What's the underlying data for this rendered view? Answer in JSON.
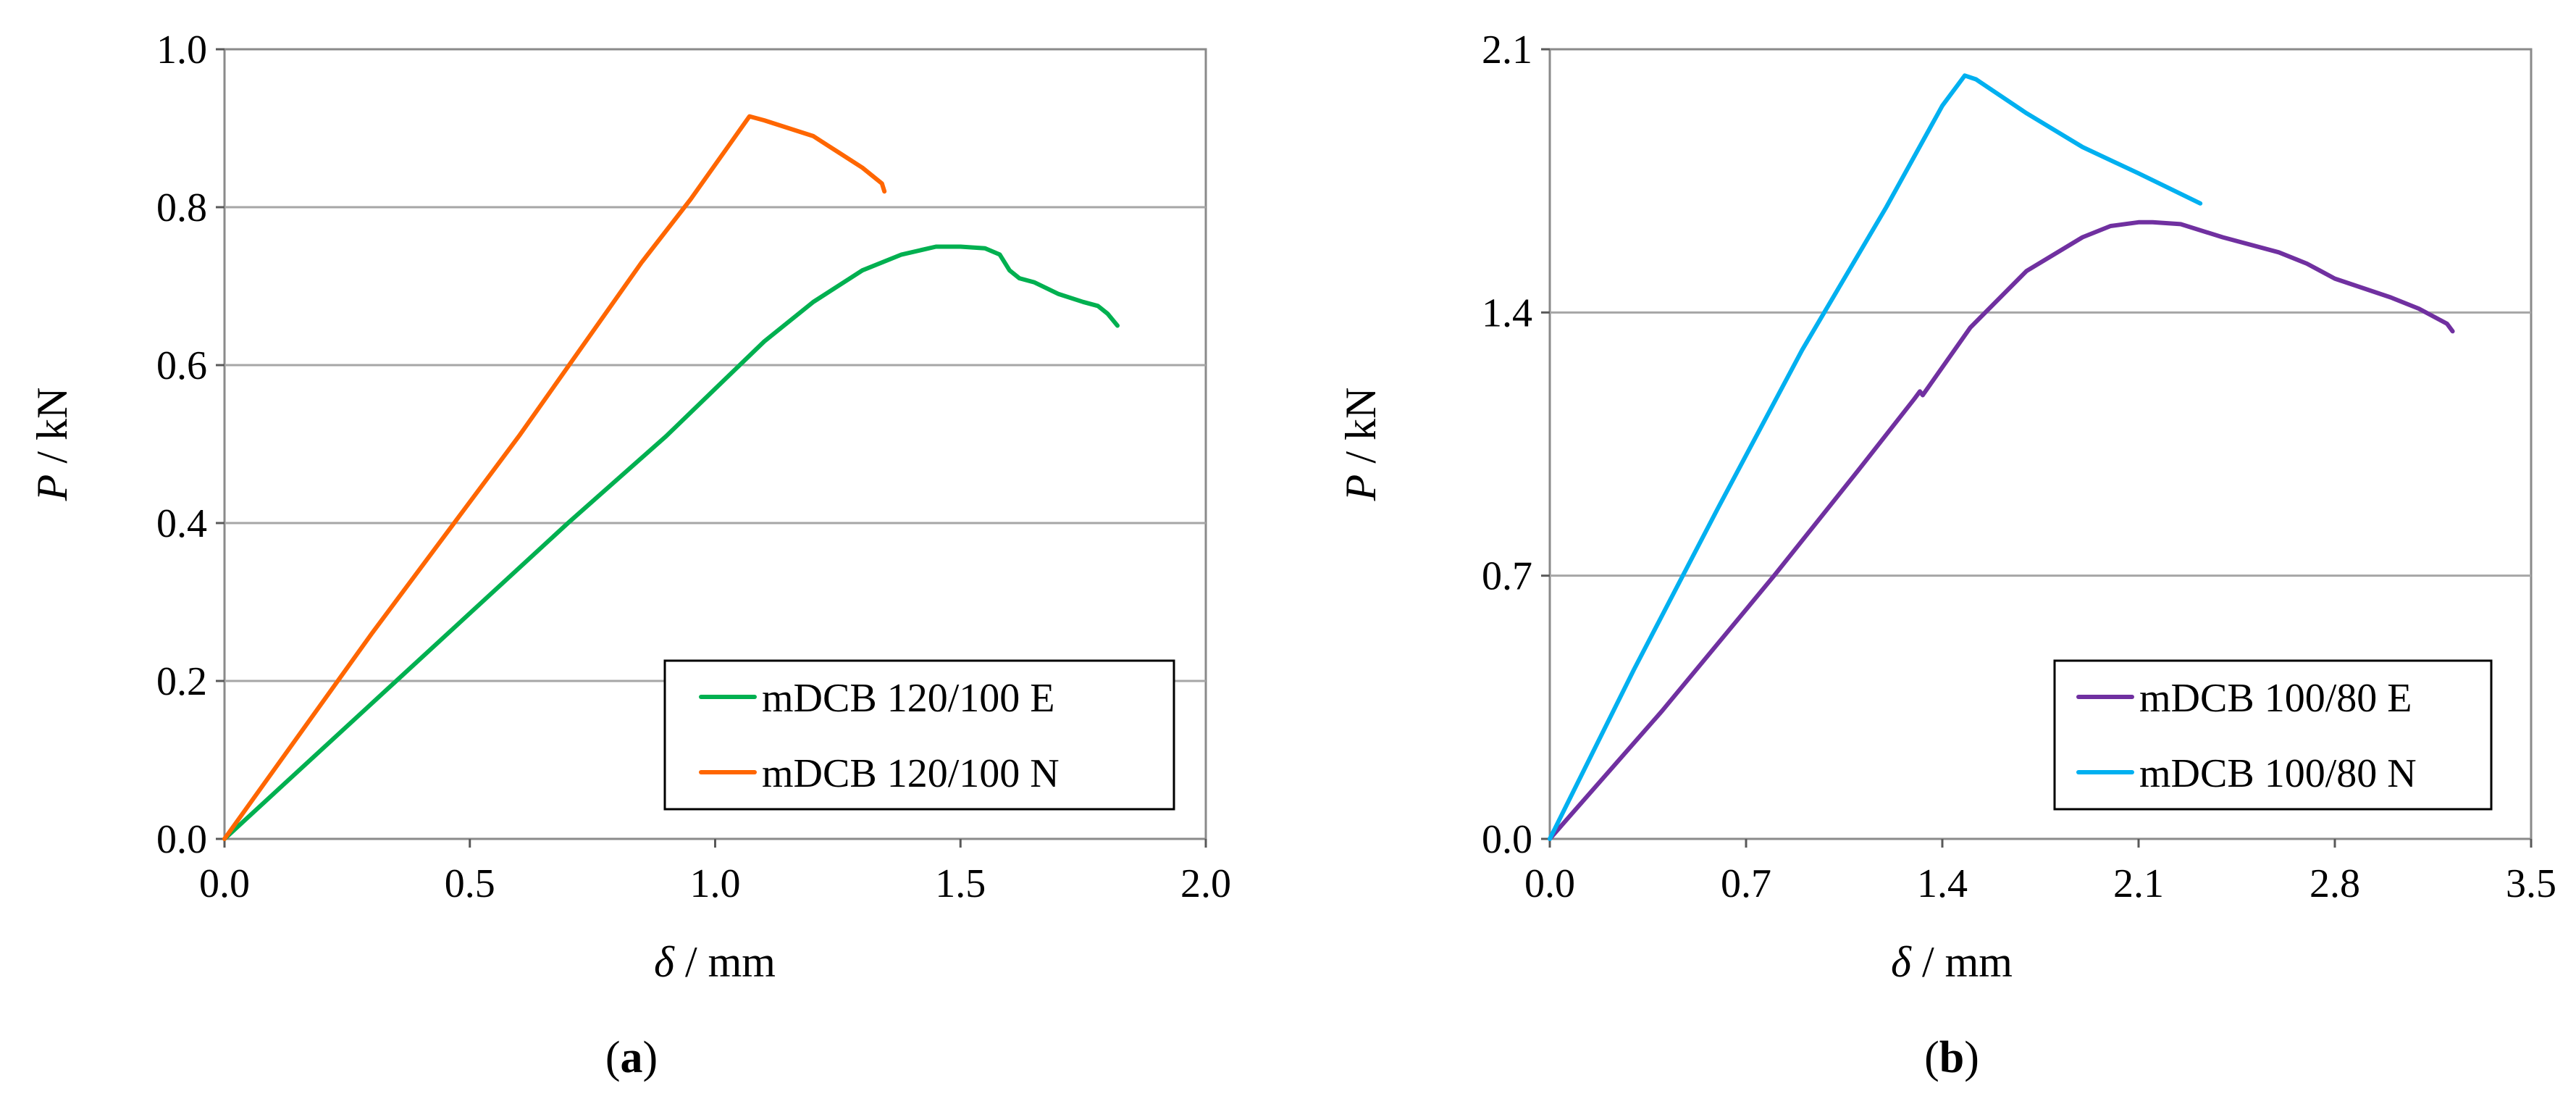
{
  "chart_data": [
    {
      "type": "line",
      "panel_label": "a",
      "xlabel_symbol": "δ",
      "xlabel_unit": " / mm",
      "ylabel_symbol": "P",
      "ylabel_unit": " / kN",
      "xlim": [
        0,
        2.0
      ],
      "ylim": [
        0,
        1.0
      ],
      "xticks": [
        "0.0",
        "0.5",
        "1.0",
        "1.5",
        "2.0"
      ],
      "yticks": [
        "0.0",
        "0.2",
        "0.4",
        "0.6",
        "0.8",
        "1.0"
      ],
      "xtick_values": [
        0,
        0.5,
        1.0,
        1.5,
        2.0
      ],
      "ytick_values": [
        0,
        0.2,
        0.4,
        0.6,
        0.8,
        1.0
      ],
      "grid": "horizontal",
      "legend_position": "bottom-right",
      "series": [
        {
          "name": "mDCB 120/100 E",
          "color": "#00b050",
          "x": [
            0,
            0.35,
            0.7,
            0.9,
            1.0,
            1.1,
            1.2,
            1.3,
            1.38,
            1.45,
            1.5,
            1.55,
            1.58,
            1.6,
            1.62,
            1.65,
            1.7,
            1.75,
            1.78,
            1.8,
            1.82
          ],
          "y": [
            0,
            0.2,
            0.4,
            0.51,
            0.57,
            0.63,
            0.68,
            0.72,
            0.74,
            0.75,
            0.75,
            0.748,
            0.74,
            0.72,
            0.71,
            0.705,
            0.69,
            0.68,
            0.675,
            0.665,
            0.65
          ]
        },
        {
          "name": "mDCB 120/100 N",
          "color": "#ff6600",
          "x": [
            0,
            0.3,
            0.6,
            0.85,
            0.95,
            1.03,
            1.07,
            1.1,
            1.15,
            1.2,
            1.25,
            1.3,
            1.34,
            1.345
          ],
          "y": [
            0,
            0.26,
            0.51,
            0.73,
            0.81,
            0.88,
            0.915,
            0.91,
            0.9,
            0.89,
            0.87,
            0.85,
            0.83,
            0.82
          ]
        }
      ]
    },
    {
      "type": "line",
      "panel_label": "b",
      "xlabel_symbol": "δ",
      "xlabel_unit": " / mm",
      "ylabel_symbol": "P",
      "ylabel_unit": " / kN",
      "xlim": [
        0,
        3.5
      ],
      "ylim": [
        0,
        2.1
      ],
      "xticks": [
        "0.0",
        "0.7",
        "1.4",
        "2.1",
        "2.8",
        "3.5"
      ],
      "yticks": [
        "0.0",
        "0.7",
        "1.4",
        "2.1"
      ],
      "xtick_values": [
        0,
        0.7,
        1.4,
        2.1,
        2.8,
        3.5
      ],
      "ytick_values": [
        0,
        0.7,
        1.4,
        2.1
      ],
      "grid": "horizontal",
      "legend_position": "bottom-right",
      "series": [
        {
          "name": "mDCB 100/80 E",
          "color": "#7030a0",
          "x": [
            0,
            0.4,
            0.8,
            1.1,
            1.3,
            1.32,
            1.33,
            1.5,
            1.7,
            1.9,
            2.0,
            2.1,
            2.15,
            2.25,
            2.4,
            2.6,
            2.7,
            2.75,
            2.8,
            3.0,
            3.1,
            3.2,
            3.22
          ],
          "y": [
            0,
            0.34,
            0.7,
            0.98,
            1.17,
            1.19,
            1.18,
            1.36,
            1.51,
            1.6,
            1.63,
            1.64,
            1.64,
            1.635,
            1.6,
            1.56,
            1.53,
            1.51,
            1.49,
            1.44,
            1.41,
            1.37,
            1.35
          ]
        },
        {
          "name": "mDCB 100/80 N",
          "color": "#00b0f0",
          "x": [
            0,
            0.3,
            0.6,
            0.9,
            1.2,
            1.4,
            1.48,
            1.52,
            1.7,
            1.9,
            2.1,
            2.32
          ],
          "y": [
            0,
            0.45,
            0.88,
            1.3,
            1.68,
            1.95,
            2.03,
            2.02,
            1.93,
            1.84,
            1.77,
            1.69
          ]
        }
      ]
    }
  ]
}
